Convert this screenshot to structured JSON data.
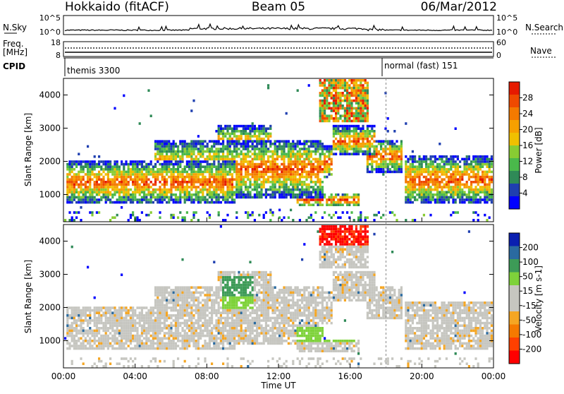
{
  "header": {
    "station": "Hokkaido (fitACF)",
    "beam": "Beam 05",
    "date": "06/Mar/2012"
  },
  "top_panels": {
    "nsky_label": "N.Sky",
    "nsky_ticks": [
      "10^5",
      "10^0"
    ],
    "nsearch_label": "N.Search",
    "nsearch_ticks": [
      "10^5",
      "10^0"
    ],
    "freq_label": "Freq.",
    "freq_unit": "[MHz]",
    "freq_ticks": [
      "18",
      "8"
    ],
    "nave_label": "Nave",
    "nave_ticks": [
      "60",
      "0"
    ],
    "cpid_label": "CPID",
    "cpid_modes": [
      {
        "name": "themis 3300",
        "start_hour": 0
      },
      {
        "name": "normal (fast) 151",
        "start_hour": 18
      }
    ]
  },
  "chart_data": [
    {
      "type": "heatmap",
      "name": "power",
      "ylabel": "Slant Range [km]",
      "yticks": [
        "4000",
        "3000",
        "2000",
        "1000"
      ],
      "ylim": [
        180,
        4500
      ],
      "xlim_hours": [
        0,
        24
      ],
      "colorbar_label": "Power [dB]",
      "colorbar_ticks": [
        "28",
        "24",
        "20",
        "16",
        "12",
        "8",
        "4"
      ],
      "colorbar_range": [
        0,
        30
      ],
      "colors": [
        "#0000ff",
        "#1f3fb0",
        "#2f8a57",
        "#4ab94b",
        "#88cc33",
        "#f0c000",
        "#f7a000",
        "#f47a00",
        "#ef4a00",
        "#e61a00"
      ]
    },
    {
      "type": "heatmap",
      "name": "velocity",
      "ylabel": "Slant Range [km]",
      "yticks": [
        "4000",
        "3000",
        "2000",
        "1000"
      ],
      "ylim": [
        180,
        4500
      ],
      "xlim_hours": [
        0,
        24
      ],
      "xlabel": "Time UT",
      "xticks": [
        "00:00",
        "04:00",
        "08:00",
        "12:00",
        "16:00",
        "20:00",
        "00:00"
      ],
      "colorbar_label": "Velocity [m s-1]",
      "colorbar_ticks": [
        "200",
        "100",
        "50",
        "15",
        "-15",
        "-50",
        "-100",
        "-200"
      ],
      "colorbar_range": [
        -250,
        250
      ],
      "colors": [
        "#ff0000",
        "#ff4000",
        "#f57a00",
        "#f5a623",
        "#c6c6c0",
        "#c6c6c0",
        "#7ed23a",
        "#3d9b57",
        "#2a6aa0",
        "#0a1fb0"
      ]
    }
  ]
}
